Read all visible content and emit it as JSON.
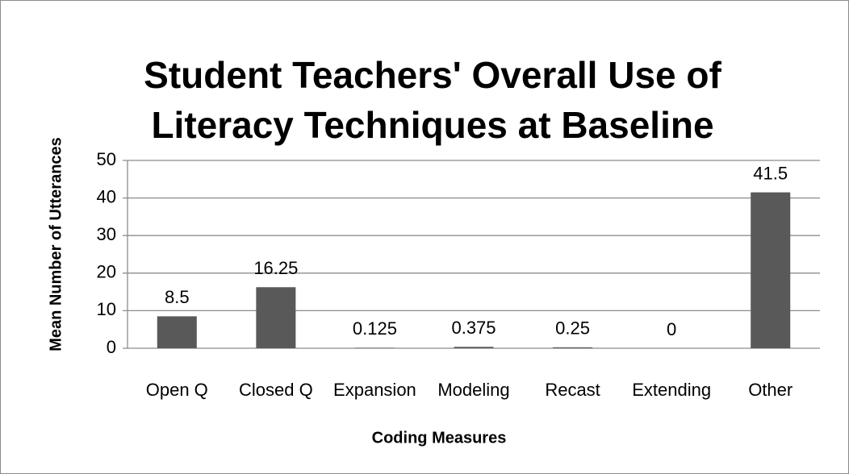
{
  "chart_data": {
    "type": "bar",
    "title": "Student Teachers' Overall Use of Literacy Techniques at Baseline",
    "x_label": "Coding Measures",
    "y_label": "Mean Number of Utterances",
    "categories": [
      "Open Q",
      "Closed Q",
      "Expansion",
      "Modeling",
      "Recast",
      "Extending",
      "Other"
    ],
    "values": [
      8.5,
      16.25,
      0.125,
      0.375,
      0.25,
      0,
      41.5
    ],
    "color": "#595959",
    "ylim": [
      0,
      50
    ],
    "yticks": [
      0,
      10,
      20,
      30,
      40,
      50
    ],
    "grid": true
  }
}
